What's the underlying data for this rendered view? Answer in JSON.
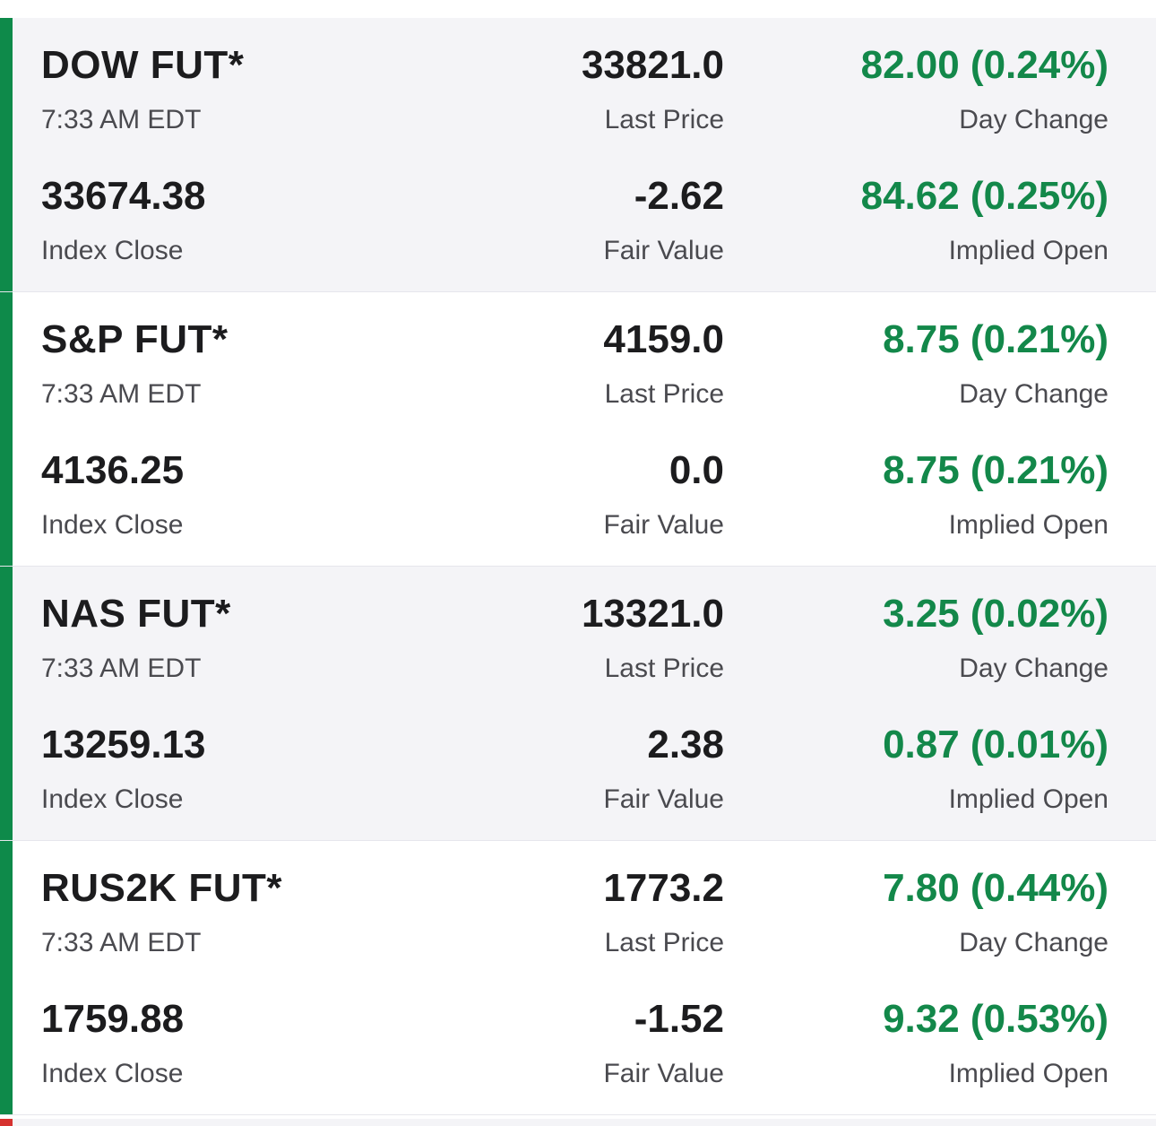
{
  "colors": {
    "positive": "#13884a",
    "accent_up": "#0e8a4a",
    "accent_down": "#d6322f",
    "row_shaded": "#f4f4f7"
  },
  "futures": [
    {
      "name": "DOW FUT*",
      "time": "7:33 AM EDT",
      "last_price": "33821.0",
      "last_price_label": "Last Price",
      "day_change": "82.00 (0.24%)",
      "day_change_label": "Day Change",
      "index_close": "33674.38",
      "index_close_label": "Index Close",
      "fair_value": "-2.62",
      "fair_value_label": "Fair Value",
      "implied_open": "84.62 (0.25%)",
      "implied_open_label": "Implied Open"
    },
    {
      "name": "S&P FUT*",
      "time": "7:33 AM EDT",
      "last_price": "4159.0",
      "last_price_label": "Last Price",
      "day_change": "8.75 (0.21%)",
      "day_change_label": "Day Change",
      "index_close": "4136.25",
      "index_close_label": "Index Close",
      "fair_value": "0.0",
      "fair_value_label": "Fair Value",
      "implied_open": "8.75 (0.21%)",
      "implied_open_label": "Implied Open"
    },
    {
      "name": "NAS FUT*",
      "time": "7:33 AM EDT",
      "last_price": "13321.0",
      "last_price_label": "Last Price",
      "day_change": "3.25 (0.02%)",
      "day_change_label": "Day Change",
      "index_close": "13259.13",
      "index_close_label": "Index Close",
      "fair_value": "2.38",
      "fair_value_label": "Fair Value",
      "implied_open": "0.87 (0.01%)",
      "implied_open_label": "Implied Open"
    },
    {
      "name": "RUS2K FUT*",
      "time": "7:33 AM EDT",
      "last_price": "1773.2",
      "last_price_label": "Last Price",
      "day_change": "7.80 (0.44%)",
      "day_change_label": "Day Change",
      "index_close": "1759.88",
      "index_close_label": "Index Close",
      "fair_value": "-1.52",
      "fair_value_label": "Fair Value",
      "implied_open": "9.32 (0.53%)",
      "implied_open_label": "Implied Open"
    }
  ]
}
